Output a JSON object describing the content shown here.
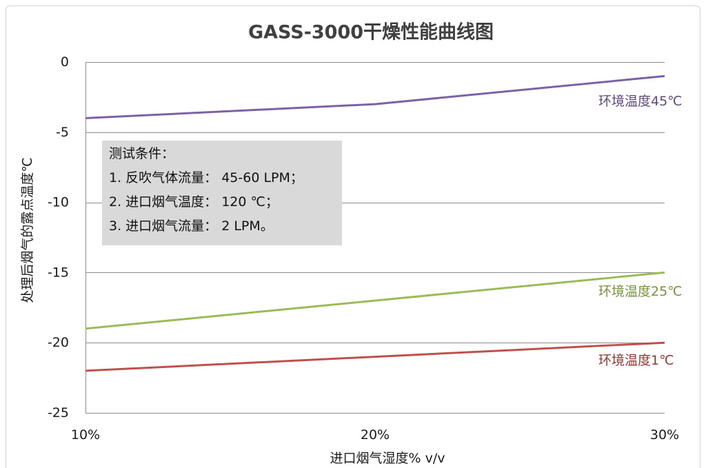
{
  "chart_data": {
    "type": "line",
    "title": "GASS-3000干燥性能曲线图",
    "xlabel": "进口烟气湿度% v/v",
    "ylabel": "处理后烟气的露点温度℃",
    "x": [
      10,
      20,
      30
    ],
    "x_tick_labels": [
      "10%",
      "20%",
      "30%"
    ],
    "xlim": [
      10,
      30
    ],
    "ylim": [
      -25,
      0
    ],
    "y_ticks": [
      0,
      -5,
      -10,
      -15,
      -20,
      -25
    ],
    "y_tick_labels": [
      "0",
      "-5",
      "-10",
      "-15",
      "-20",
      "-25"
    ],
    "grid": true,
    "legend": "inline-right",
    "series": [
      {
        "name": "环境温度45℃",
        "values": [
          -4,
          -3,
          -1
        ],
        "color": "#7b61a6",
        "label_color": "#5f497a"
      },
      {
        "name": "环境温度25℃",
        "values": [
          -19,
          -17,
          -15
        ],
        "color": "#9bbb59",
        "label_color": "#76923c"
      },
      {
        "name": "环境温度1℃",
        "values": [
          -22,
          -21,
          -20
        ],
        "color": "#c0504d",
        "label_color": "#943634"
      }
    ],
    "annotation": {
      "lines": [
        "测试条件：",
        "1. 反吹气体流量： 45-60 LPM；",
        "2. 进口烟气温度： 120 ℃；",
        "3. 进口烟气流量： 2 LPM。"
      ],
      "background": "#d9d9d9"
    }
  }
}
